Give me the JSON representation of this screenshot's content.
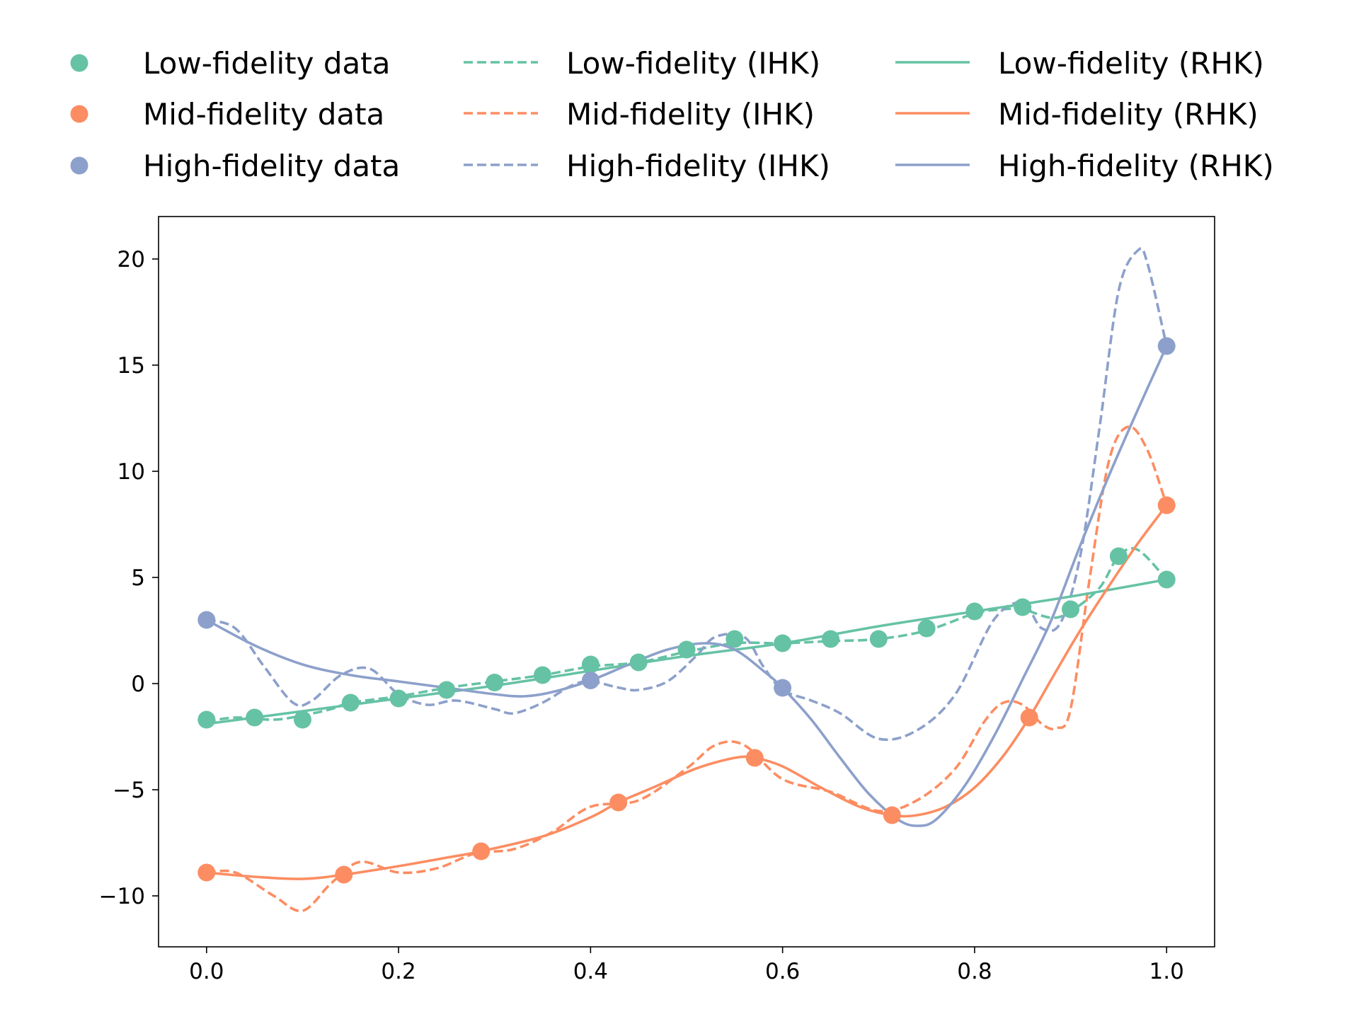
{
  "chart_data": {
    "type": "line",
    "title": "",
    "xlabel": "",
    "ylabel": "",
    "xlim": [
      -0.05,
      1.05
    ],
    "ylim": [
      -12.4,
      22.0
    ],
    "xticks": [
      0.0,
      0.2,
      0.4,
      0.6,
      0.8,
      1.0
    ],
    "xtick_labels": [
      "0.0",
      "0.2",
      "0.4",
      "0.6",
      "0.8",
      "1.0"
    ],
    "yticks": [
      -10,
      -5,
      0,
      5,
      10,
      15,
      20
    ],
    "ytick_labels": [
      "−10",
      "−5",
      "0",
      "5",
      "10",
      "15",
      "20"
    ],
    "grid": false,
    "legend_position": "top (outside), 3 columns",
    "colors": {
      "low": "#66c2a5",
      "mid": "#fc8d62",
      "high": "#8da0cb"
    },
    "series": [
      {
        "name": "Low-fidelity data",
        "kind": "scatter",
        "color": "#66c2a5",
        "x": [
          0.0,
          0.05,
          0.1,
          0.15,
          0.2,
          0.25,
          0.3,
          0.35,
          0.4,
          0.45,
          0.5,
          0.55,
          0.6,
          0.65,
          0.7,
          0.75,
          0.8,
          0.85,
          0.9,
          0.95,
          1.0
        ],
        "y": [
          -1.7,
          -1.6,
          -1.7,
          -0.9,
          -0.7,
          -0.3,
          0.05,
          0.4,
          0.9,
          1.0,
          1.6,
          2.1,
          1.9,
          2.1,
          2.1,
          2.6,
          3.4,
          3.6,
          3.5,
          6.0,
          4.9
        ]
      },
      {
        "name": "Mid-fidelity data",
        "kind": "scatter",
        "color": "#fc8d62",
        "x": [
          0.0,
          0.143,
          0.286,
          0.429,
          0.571,
          0.714,
          0.857,
          1.0
        ],
        "y": [
          -8.9,
          -9.0,
          -7.9,
          -5.6,
          -3.5,
          -6.2,
          -1.6,
          8.4
        ]
      },
      {
        "name": "High-fidelity data",
        "kind": "scatter",
        "color": "#8da0cb",
        "x": [
          0.0,
          0.4,
          0.6,
          1.0
        ],
        "y": [
          3.0,
          0.15,
          -0.2,
          15.9
        ]
      },
      {
        "name": "Low-fidelity (IHK)",
        "kind": "line",
        "dash": true,
        "color": "#66c2a5",
        "x": [
          0.0,
          0.03,
          0.07,
          0.1,
          0.13,
          0.15,
          0.2,
          0.25,
          0.3,
          0.35,
          0.4,
          0.45,
          0.5,
          0.55,
          0.6,
          0.65,
          0.7,
          0.75,
          0.8,
          0.83,
          0.85,
          0.88,
          0.9,
          0.93,
          0.95,
          0.97,
          1.0
        ],
        "y": [
          -1.8,
          -1.6,
          -1.7,
          -1.5,
          -1.2,
          -0.9,
          -0.6,
          -0.2,
          0.1,
          0.4,
          0.8,
          1.0,
          1.5,
          1.9,
          1.9,
          2.0,
          2.1,
          2.5,
          3.3,
          3.5,
          3.5,
          3.1,
          3.4,
          4.5,
          6.0,
          6.3,
          4.9
        ]
      },
      {
        "name": "Mid-fidelity (IHK)",
        "kind": "line",
        "dash": true,
        "color": "#fc8d62",
        "x": [
          0.0,
          0.03,
          0.07,
          0.1,
          0.13,
          0.16,
          0.2,
          0.24,
          0.28,
          0.32,
          0.36,
          0.4,
          0.45,
          0.5,
          0.53,
          0.56,
          0.6,
          0.65,
          0.7,
          0.74,
          0.78,
          0.81,
          0.83,
          0.85,
          0.87,
          0.885,
          0.9,
          0.92,
          0.94,
          0.96,
          0.98,
          1.0
        ],
        "y": [
          -8.9,
          -8.9,
          -10.0,
          -10.7,
          -9.4,
          -8.4,
          -8.9,
          -8.7,
          -8.0,
          -7.8,
          -7.0,
          -5.8,
          -5.5,
          -4.0,
          -2.9,
          -2.9,
          -4.5,
          -5.1,
          -6.0,
          -5.5,
          -4.0,
          -1.8,
          -0.9,
          -1.0,
          -1.9,
          -2.1,
          -1.2,
          5.0,
          10.5,
          12.1,
          11.0,
          8.4
        ]
      },
      {
        "name": "High-fidelity (IHK)",
        "kind": "line",
        "dash": true,
        "color": "#8da0cb",
        "x": [
          0.0,
          0.03,
          0.06,
          0.09,
          0.11,
          0.14,
          0.17,
          0.2,
          0.23,
          0.26,
          0.3,
          0.32,
          0.35,
          0.38,
          0.4,
          0.43,
          0.45,
          0.48,
          0.51,
          0.53,
          0.56,
          0.58,
          0.6,
          0.63,
          0.66,
          0.7,
          0.74,
          0.78,
          0.82,
          0.85,
          0.87,
          0.89,
          0.91,
          0.93,
          0.95,
          0.97,
          0.98,
          1.0
        ],
        "y": [
          3.0,
          2.6,
          0.8,
          -0.9,
          -0.8,
          0.4,
          0.7,
          -0.5,
          -1.0,
          -0.8,
          -1.2,
          -1.4,
          -0.9,
          -0.1,
          0.1,
          -0.2,
          -0.3,
          0.1,
          1.3,
          2.2,
          2.2,
          0.8,
          -0.3,
          -0.8,
          -1.4,
          -2.6,
          -2.2,
          -0.5,
          3.0,
          3.8,
          2.6,
          2.9,
          6.0,
          12.0,
          18.5,
          20.4,
          19.8,
          15.9
        ]
      },
      {
        "name": "Low-fidelity (RHK)",
        "kind": "line",
        "dash": false,
        "color": "#66c2a5",
        "x": [
          0.0,
          0.1,
          0.2,
          0.3,
          0.4,
          0.5,
          0.6,
          0.7,
          0.8,
          0.9,
          1.0
        ],
        "y": [
          -1.9,
          -1.3,
          -0.7,
          -0.1,
          0.6,
          1.3,
          1.9,
          2.7,
          3.4,
          4.1,
          4.9
        ]
      },
      {
        "name": "Mid-fidelity (RHK)",
        "kind": "line",
        "dash": false,
        "color": "#fc8d62",
        "x": [
          0.0,
          0.05,
          0.1,
          0.143,
          0.2,
          0.25,
          0.286,
          0.35,
          0.4,
          0.429,
          0.47,
          0.51,
          0.55,
          0.571,
          0.6,
          0.64,
          0.68,
          0.714,
          0.74,
          0.77,
          0.8,
          0.83,
          0.857,
          0.88,
          0.91,
          0.94,
          0.97,
          1.0
        ],
        "y": [
          -8.9,
          -9.1,
          -9.2,
          -9.0,
          -8.6,
          -8.2,
          -7.9,
          -7.2,
          -6.3,
          -5.6,
          -4.8,
          -4.0,
          -3.5,
          -3.5,
          -3.9,
          -4.9,
          -5.8,
          -6.2,
          -6.2,
          -5.8,
          -4.9,
          -3.4,
          -1.6,
          0.2,
          2.5,
          4.6,
          6.6,
          8.4
        ]
      },
      {
        "name": "High-fidelity (RHK)",
        "kind": "line",
        "dash": false,
        "color": "#8da0cb",
        "x": [
          0.0,
          0.05,
          0.1,
          0.15,
          0.2,
          0.25,
          0.3,
          0.33,
          0.36,
          0.4,
          0.44,
          0.48,
          0.52,
          0.55,
          0.58,
          0.6,
          0.63,
          0.66,
          0.69,
          0.72,
          0.74,
          0.76,
          0.79,
          0.82,
          0.85,
          0.88,
          0.91,
          0.94,
          0.97,
          1.0
        ],
        "y": [
          3.0,
          1.8,
          0.9,
          0.4,
          0.1,
          -0.2,
          -0.5,
          -0.6,
          -0.4,
          0.15,
          0.9,
          1.6,
          1.9,
          1.6,
          0.6,
          -0.2,
          -1.7,
          -3.5,
          -5.2,
          -6.4,
          -6.7,
          -6.4,
          -4.8,
          -2.5,
          0.2,
          3.0,
          6.5,
          9.8,
          12.9,
          15.9
        ]
      }
    ]
  }
}
